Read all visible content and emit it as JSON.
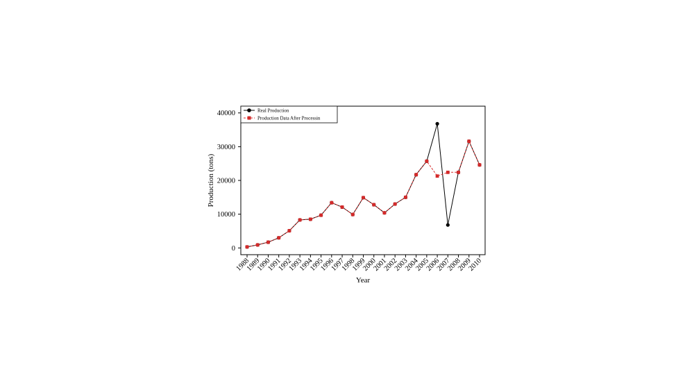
{
  "chart_data": {
    "type": "line",
    "xlabel": "Year",
    "ylabel": "Production (tons)",
    "ylim": [
      -2000,
      42000
    ],
    "yticks": [
      0,
      10000,
      20000,
      30000,
      40000
    ],
    "categories": [
      "1988",
      "1989",
      "1990",
      "1991",
      "1992",
      "1993",
      "1994",
      "1995",
      "1996",
      "1997",
      "1998",
      "1999",
      "2000",
      "2001",
      "2002",
      "2003",
      "2004",
      "2005",
      "2006",
      "2007",
      "2008",
      "2009",
      "2010"
    ],
    "legend_position": "top-left",
    "grid": false,
    "series": [
      {
        "name": "Real Production",
        "color": "#000000",
        "marker": "circle",
        "line_style": "solid",
        "values": [
          300,
          900,
          1700,
          3000,
          5100,
          8300,
          8500,
          9700,
          13400,
          12100,
          9900,
          14900,
          12800,
          10400,
          13000,
          15000,
          21700,
          25700,
          36800,
          6800,
          22400,
          31600,
          24600
        ]
      },
      {
        "name": "Production Data After Processin",
        "color": "#d42a2a",
        "marker": "square",
        "line_style": "dashed",
        "values": [
          300,
          900,
          1700,
          3000,
          5100,
          8300,
          8500,
          9700,
          13400,
          12100,
          9900,
          14900,
          12800,
          10400,
          13000,
          15000,
          21700,
          25700,
          21300,
          22400,
          22400,
          31600,
          24600
        ]
      }
    ]
  }
}
